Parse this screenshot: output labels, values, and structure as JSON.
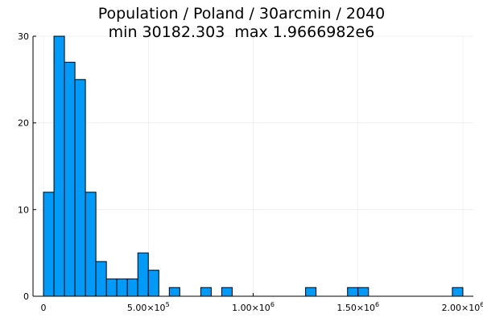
{
  "chart_data": {
    "type": "bar",
    "title": [
      "Population / Poland / 30arcmin / 2040",
      "min 30182.303  max 1.9666982e6"
    ],
    "xlabel": "",
    "ylabel": "",
    "bin_width": 50000,
    "xlim": [
      -50000,
      2050000
    ],
    "ylim": [
      0,
      30
    ],
    "grid": true,
    "legend": "none",
    "bar_color": "#009AF9",
    "x_ticks": [
      {
        "value": 0,
        "label": "0",
        "exp": ""
      },
      {
        "value": 500000,
        "label": "5.00×10",
        "exp": "5"
      },
      {
        "value": 1000000,
        "label": "1.00×10",
        "exp": "6"
      },
      {
        "value": 1500000,
        "label": "1.50×10",
        "exp": "6"
      },
      {
        "value": 2000000,
        "label": "2.00×10",
        "exp": "6"
      }
    ],
    "y_ticks": [
      {
        "value": 0,
        "label": "0"
      },
      {
        "value": 10,
        "label": "10"
      },
      {
        "value": 20,
        "label": "20"
      },
      {
        "value": 30,
        "label": "30"
      }
    ],
    "bins": [
      {
        "x0": 0,
        "x1": 50000,
        "count": 12
      },
      {
        "x0": 50000,
        "x1": 100000,
        "count": 30
      },
      {
        "x0": 100000,
        "x1": 150000,
        "count": 27
      },
      {
        "x0": 150000,
        "x1": 200000,
        "count": 25
      },
      {
        "x0": 200000,
        "x1": 250000,
        "count": 12
      },
      {
        "x0": 250000,
        "x1": 300000,
        "count": 4
      },
      {
        "x0": 300000,
        "x1": 350000,
        "count": 2
      },
      {
        "x0": 350000,
        "x1": 400000,
        "count": 2
      },
      {
        "x0": 400000,
        "x1": 450000,
        "count": 2
      },
      {
        "x0": 450000,
        "x1": 500000,
        "count": 5
      },
      {
        "x0": 500000,
        "x1": 550000,
        "count": 3
      },
      {
        "x0": 600000,
        "x1": 650000,
        "count": 1
      },
      {
        "x0": 750000,
        "x1": 800000,
        "count": 1
      },
      {
        "x0": 850000,
        "x1": 900000,
        "count": 1
      },
      {
        "x0": 1250000,
        "x1": 1300000,
        "count": 1
      },
      {
        "x0": 1450000,
        "x1": 1500000,
        "count": 1
      },
      {
        "x0": 1500000,
        "x1": 1550000,
        "count": 1
      },
      {
        "x0": 1950000,
        "x1": 2000000,
        "count": 1
      }
    ]
  }
}
